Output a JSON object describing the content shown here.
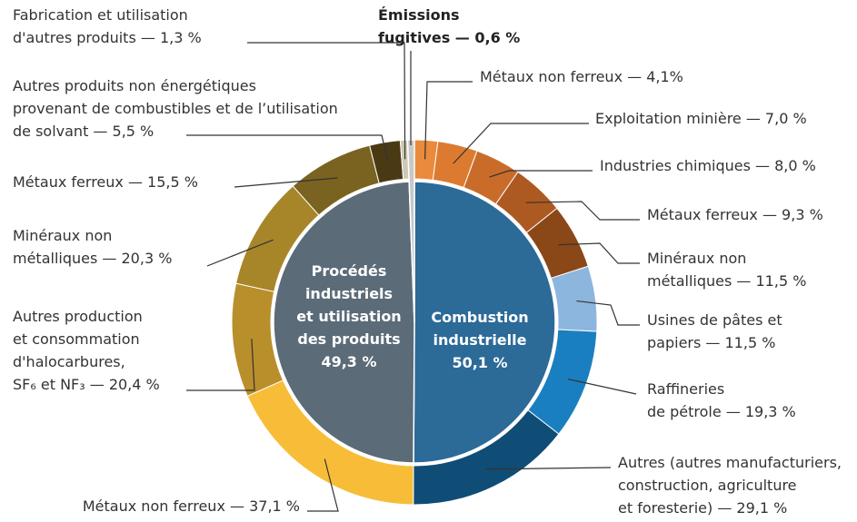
{
  "chart_data": {
    "type": "sunburst",
    "segments": [
      {
        "label": [
          "Combustion",
          "industrielle",
          "50,1 %"
        ],
        "value": 50.1,
        "color": "#2c6a98",
        "children": [
          {
            "label": [
              "Métaux non ferreux — 4,1%"
            ],
            "value": 4.1,
            "color": "#ea8a3c"
          },
          {
            "label": [
              "Exploitation minière — 7,0 %"
            ],
            "value": 7.0,
            "color": "#dc7b30"
          },
          {
            "label": [
              "Industries chimiques — 8,0 %"
            ],
            "value": 8.0,
            "color": "#c96c2a"
          },
          {
            "label": [
              "Métaux ferreux — 9,3 %"
            ],
            "value": 9.3,
            "color": "#ad5a22"
          },
          {
            "label": [
              "Minéraux non",
              "métalliques — 11,5 %"
            ],
            "value": 11.5,
            "color": "#8a4717"
          },
          {
            "label": [
              "Usines de pâtes et",
              "papiers — 11,5 %"
            ],
            "value": 11.5,
            "color": "#8db6de"
          },
          {
            "label": [
              "Raffineries",
              "de pétrole — 19,3 %"
            ],
            "value": 19.3,
            "color": "#1a7fc0"
          },
          {
            "label": [
              "Autres (autres manufacturiers,",
              "construction, agriculture",
              "et foresterie) — 29,1 %"
            ],
            "value": 29.1,
            "color": "#0f4d76"
          }
        ]
      },
      {
        "label": [
          "Procédés",
          "industriels",
          "et utilisation",
          "des produits",
          "49,3 %"
        ],
        "value": 49.3,
        "color": "#5b6b77",
        "children": [
          {
            "label": [
              "Métaux non ferreux — 37,1 %"
            ],
            "value": 37.1,
            "color": "#f8bd38"
          },
          {
            "label": [
              "Autres production",
              "et consommation",
              "d'halocarbures,",
              "SF₆ et NF₃ — 20,4 %"
            ],
            "value": 20.4,
            "color": "#b98f2c"
          },
          {
            "label": [
              "Minéraux non",
              "métalliques — 20,3 %"
            ],
            "value": 20.3,
            "color": "#a7862a"
          },
          {
            "label": [
              "Métaux ferreux — 15,5 %"
            ],
            "value": 15.5,
            "color": "#7a6320"
          },
          {
            "label": [
              "Autres produits non énergétiques",
              "provenant de combustibles et de l’utilisation",
              "de solvant — 5,5 %"
            ],
            "value": 5.5,
            "color": "#4a3a14"
          },
          {
            "label": [
              "Fabrication et utilisation",
              "d'autres produits — 1,3 %"
            ],
            "value": 1.3,
            "color": "#cfc8b2"
          }
        ]
      },
      {
        "label": [
          "Émissions",
          "fugitives — 0,6 %"
        ],
        "value": 0.6,
        "color": "#c8c8c8",
        "children": []
      }
    ]
  }
}
